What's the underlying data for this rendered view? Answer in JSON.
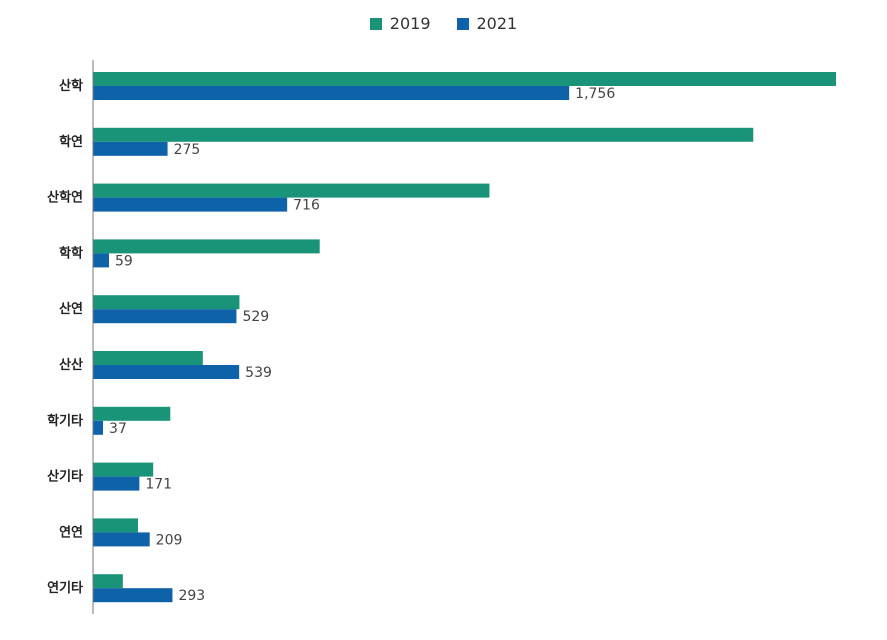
{
  "chart_data": {
    "type": "bar",
    "orientation": "horizontal",
    "categories": [
      "산학",
      "학연",
      "산학연",
      "학학",
      "산연",
      "산산",
      "학기타",
      "산기타",
      "연연",
      "연기타"
    ],
    "series": [
      {
        "name": "2019",
        "color": "#1a9479",
        "values": [
          2740,
          2435,
          1462,
          836,
          540,
          405,
          285,
          222,
          166,
          110
        ]
      },
      {
        "name": "2021",
        "color": "#0d62a8",
        "values": [
          1756,
          275,
          716,
          59,
          529,
          539,
          37,
          171,
          209,
          293
        ],
        "labels": [
          "1,756",
          "275",
          "716",
          "59",
          "529",
          "539",
          "37",
          "171",
          "209",
          "293"
        ]
      }
    ],
    "xlim": [
      0,
      2740
    ],
    "grid": false,
    "legend_position": "top-center"
  }
}
